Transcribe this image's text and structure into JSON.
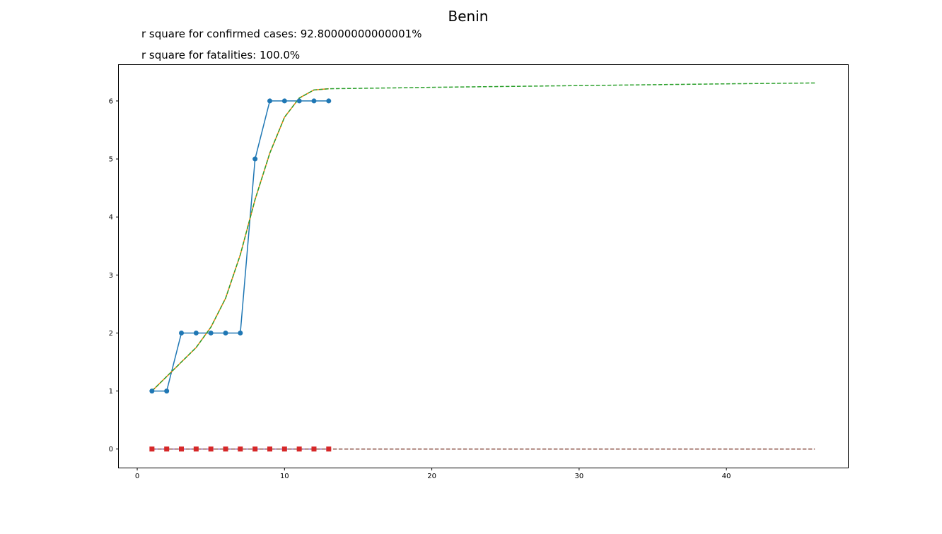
{
  "chart_data": {
    "type": "line",
    "title": "Benin",
    "annotations": [
      "r square for confirmed cases: 92.80000000000001%",
      "r square for fatalities: 100.0%"
    ],
    "xlabel": "",
    "ylabel": "",
    "xlim": [
      -1.25,
      48.25
    ],
    "ylim": [
      -0.32,
      6.62
    ],
    "xticks": [
      0,
      10,
      20,
      30,
      40
    ],
    "yticks": [
      0,
      1,
      2,
      3,
      4,
      5,
      6
    ],
    "grid": false,
    "legend": "none",
    "series": [
      {
        "style": "solid-circle-markers",
        "color": "#1f77b4",
        "x": [
          1,
          2,
          3,
          4,
          5,
          6,
          7,
          8,
          9,
          10,
          11,
          12,
          13
        ],
        "y": [
          1,
          1,
          2,
          2,
          2,
          2,
          2,
          5,
          6,
          6,
          6,
          6,
          6
        ]
      },
      {
        "style": "solid",
        "color": "#ff7f0e",
        "x": [
          1,
          2,
          3,
          4,
          5,
          6,
          7,
          8,
          9,
          10,
          11,
          12,
          13
        ],
        "y": [
          1.0,
          1.25,
          1.5,
          1.75,
          2.1,
          2.6,
          3.35,
          4.3,
          5.1,
          5.72,
          6.05,
          6.19,
          6.21
        ]
      },
      {
        "style": "dashed",
        "color": "#2ca02c",
        "x": [
          1,
          2,
          3,
          4,
          5,
          6,
          7,
          8,
          9,
          10,
          11,
          12,
          13,
          14,
          16,
          20,
          25,
          30,
          35,
          40,
          46
        ],
        "y": [
          1.0,
          1.25,
          1.5,
          1.75,
          2.1,
          2.6,
          3.35,
          4.3,
          5.1,
          5.72,
          6.05,
          6.19,
          6.21,
          6.214,
          6.22,
          6.235,
          6.25,
          6.265,
          6.28,
          6.295,
          6.31
        ]
      },
      {
        "style": "solid-square-markers",
        "color": "#d62728",
        "x": [
          1,
          2,
          3,
          4,
          5,
          6,
          7,
          8,
          9,
          10,
          11,
          12,
          13
        ],
        "y": [
          0,
          0,
          0,
          0,
          0,
          0,
          0,
          0,
          0,
          0,
          0,
          0,
          0
        ]
      },
      {
        "style": "solid",
        "color": "#9467bd",
        "x": [
          1,
          13
        ],
        "y": [
          0,
          0
        ]
      },
      {
        "style": "dashed",
        "color": "#8c564b",
        "x": [
          1,
          46
        ],
        "y": [
          0,
          0
        ]
      }
    ]
  }
}
